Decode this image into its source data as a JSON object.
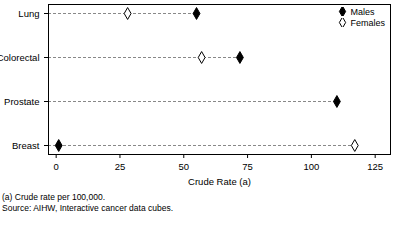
{
  "chart_data": {
    "type": "dot",
    "orientation": "horizontal",
    "categories": [
      "Lung",
      "Colorectal",
      "Prostate",
      "Breast"
    ],
    "series": [
      {
        "name": "Males",
        "color": "#000000",
        "marker": "diamond",
        "values": [
          55,
          72,
          110,
          1
        ]
      },
      {
        "name": "Females",
        "color": "#000000",
        "marker": "diamond-open",
        "values": [
          28,
          57,
          null,
          117
        ]
      }
    ],
    "xlabel": "Crude Rate (a)",
    "xlim": [
      -3,
      131
    ],
    "xticks": [
      0,
      25,
      50,
      75,
      100,
      125
    ],
    "line_style": "dashed",
    "grid": false,
    "legend": "top-right",
    "annotations": [
      "(a) Crude rate per 100,000.",
      "Source: AIHW, Interactive cancer data cubes."
    ]
  }
}
